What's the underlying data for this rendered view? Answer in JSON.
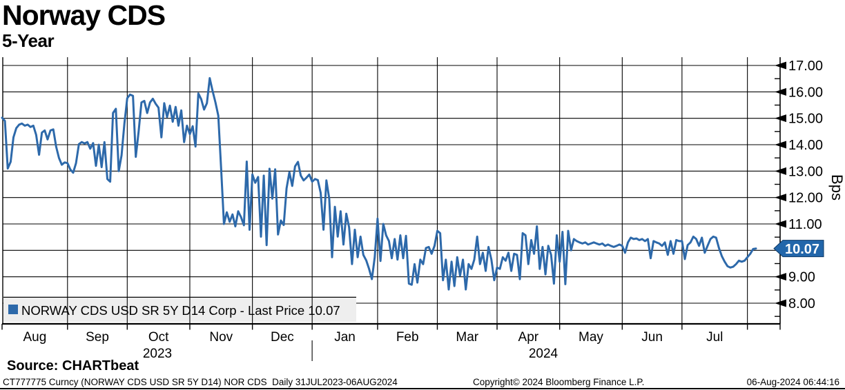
{
  "header": {
    "title": "Norway CDS",
    "subtitle": "5-Year"
  },
  "legend": {
    "marker_icon": "blue-square-series-marker",
    "label": "NORWAY CDS USD SR 5Y D14 Corp - Last Price 10.07",
    "bg_color": "#eeeeee"
  },
  "last_price_tag": {
    "value": "10.07",
    "bg_color": "#2266aa",
    "text_color": "#ffffff"
  },
  "source_line": "Source: CHARTbeat",
  "footer": {
    "left": "CT777775 Curncy (NORWAY CDS USD SR 5Y D14) NOR CDS  Daily 31JUL2023-06AUG2024",
    "center": "Copyright© 2024 Bloomberg Finance L.P.",
    "right": "06-Aug-2024 06:44:16"
  },
  "chart_data": {
    "type": "line",
    "title": "Norway CDS",
    "subtitle": "5-Year",
    "ylabel": "Bps",
    "ylim": [
      8,
      17
    ],
    "y_major_ticks": [
      8,
      9,
      10,
      11,
      12,
      13,
      14,
      15,
      16,
      17
    ],
    "y_tick_label_format": "0.00",
    "y_axis_side": "right",
    "grid": true,
    "legend_position": "bottom-left-inside",
    "date_range": "31JUL2023-06AUG2024",
    "x_axis": {
      "months": [
        "Aug",
        "Sep",
        "Oct",
        "Nov",
        "Dec",
        "Jan",
        "Feb",
        "Mar",
        "Apr",
        "May",
        "Jun",
        "Jul"
      ],
      "month_start_indices": [
        0,
        23,
        44,
        66,
        88,
        109,
        132,
        153,
        174,
        196,
        218,
        239,
        262
      ],
      "year_labels": [
        {
          "text": "2023",
          "x": 228
        },
        {
          "text": "2024",
          "x": 787
        }
      ],
      "year_separator_after_month": "Dec"
    },
    "series": [
      {
        "name": "NORWAY CDS USD SR 5Y D14 Corp",
        "last_price": 10.07,
        "color": "#2d69aa",
        "values": [
          15.02,
          14.9,
          13.1,
          13.35,
          14.28,
          14.63,
          14.76,
          14.8,
          14.72,
          14.76,
          14.67,
          14.72,
          14.37,
          13.62,
          14.46,
          14.54,
          14.2,
          14.54,
          14.58,
          13.93,
          13.5,
          13.24,
          13.33,
          13.3,
          13.06,
          12.94,
          13.3,
          14.02,
          14.1,
          14.05,
          14.1,
          13.85,
          14.06,
          13.2,
          14.0,
          13.15,
          14.1,
          12.7,
          12.6,
          15.2,
          15.36,
          13.0,
          13.6,
          14.8,
          15.76,
          15.9,
          15.85,
          13.54,
          14.5,
          15.6,
          15.66,
          15.2,
          15.6,
          15.74,
          15.55,
          15.4,
          14.28,
          15.57,
          15.05,
          15.48,
          14.87,
          15.43,
          14.72,
          15.3,
          14.1,
          14.72,
          14.4,
          14.7,
          13.93,
          15.94,
          15.72,
          15.33,
          15.57,
          16.52,
          16.04,
          15.6,
          15.1,
          13.1,
          11.0,
          11.44,
          11.08,
          11.36,
          10.91,
          11.48,
          11.26,
          10.95,
          13.36,
          10.78,
          12.87,
          12.56,
          12.78,
          10.52,
          12.83,
          10.2,
          13.09,
          11.96,
          13.07,
          10.6,
          11.13,
          10.96,
          12.35,
          12.96,
          12.44,
          13.18,
          13.35,
          12.83,
          12.65,
          12.75,
          12.87,
          12.6,
          12.7,
          12.66,
          12.18,
          10.78,
          12.65,
          11.96,
          9.74,
          11.65,
          10.52,
          11.48,
          10.22,
          11.39,
          10.87,
          9.48,
          10.78,
          9.74,
          10.52,
          9.83,
          9.62,
          9.3,
          8.91,
          9.74,
          11.2,
          9.6,
          11.0,
          10.57,
          10.35,
          9.7,
          10.43,
          9.65,
          10.57,
          9.7,
          10.55,
          8.74,
          8.7,
          9.48,
          8.78,
          9.65,
          9.48,
          10.09,
          10.13,
          9.87,
          10.17,
          10.74,
          10.65,
          8.87,
          9.65,
          8.52,
          9.57,
          8.65,
          9.74,
          9.04,
          9.65,
          8.52,
          9.48,
          9.3,
          9.65,
          10.52,
          9.48,
          9.91,
          9.22,
          10.13,
          9.65,
          8.87,
          9.35,
          9.3,
          9.74,
          9.61,
          9.91,
          9.22,
          9.87,
          9.83,
          8.91,
          10.65,
          10.57,
          9.48,
          10.39,
          9.87,
          10.91,
          9.3,
          10.13,
          9.09,
          10.17,
          9.83,
          8.74,
          10.57,
          9.57,
          10.7,
          8.72,
          10.74,
          10.0,
          10.43,
          10.35,
          10.3,
          10.26,
          10.3,
          10.22,
          10.26,
          10.3,
          10.26,
          10.22,
          10.26,
          10.17,
          10.22,
          10.17,
          10.13,
          10.17,
          10.22,
          10.17,
          9.91,
          10.3,
          10.48,
          10.43,
          10.45,
          10.39,
          10.43,
          10.35,
          10.43,
          9.7,
          10.35,
          10.3,
          10.26,
          10.17,
          10.3,
          9.83,
          10.35,
          9.87,
          10.39,
          10.35,
          10.35,
          9.67,
          10.2,
          10.3,
          10.52,
          10.43,
          10.17,
          10.48,
          9.91,
          10.17,
          10.43,
          10.52,
          10.48,
          10.09,
          9.78,
          9.57,
          9.4,
          9.35,
          9.38,
          9.48,
          9.61,
          9.57,
          9.61,
          9.74,
          9.87,
          10.05,
          10.07
        ]
      }
    ]
  }
}
